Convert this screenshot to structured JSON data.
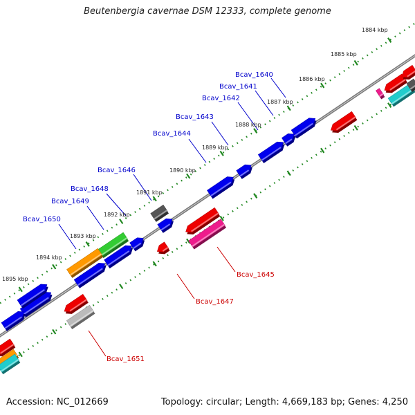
{
  "title": "Beutenbergia cavernae DSM 12333, complete genome",
  "footer": {
    "accession": "Accession: NC_012669",
    "topology": "Topology: circular; Length: 4,669,183 bp; Genes: 4,250"
  },
  "ticks": [
    "1884 kbp",
    "1885 kbp",
    "1886 kbp",
    "1887 kbp",
    "1888 kbp",
    "1889 kbp",
    "1890 kbp",
    "1891 kbp",
    "1892 kbp",
    "1893 kbp",
    "1894 kbp",
    "1895 kbp"
  ],
  "forward_labels": [
    "Bcav_1640",
    "Bcav_1641",
    "Bcav_1642",
    "Bcav_1643",
    "Bcav_1644",
    "Bcav_1646",
    "Bcav_1648",
    "Bcav_1649",
    "Bcav_1650"
  ],
  "reverse_labels": [
    "Bcav_1645",
    "Bcav_1647",
    "Bcav_1651"
  ],
  "colors": {
    "backbone": "#808080",
    "forward_label": "#0000cc",
    "reverse_label": "#cc0000",
    "blue": "#0000ee",
    "red": "#ee0000",
    "green": "#33cc33",
    "orange": "#ff9900",
    "magenta": "#ee1c8c",
    "gray": "#555555",
    "light_gray": "#bbbbbb",
    "cyan": "#22cccc",
    "dots": "#228822"
  }
}
